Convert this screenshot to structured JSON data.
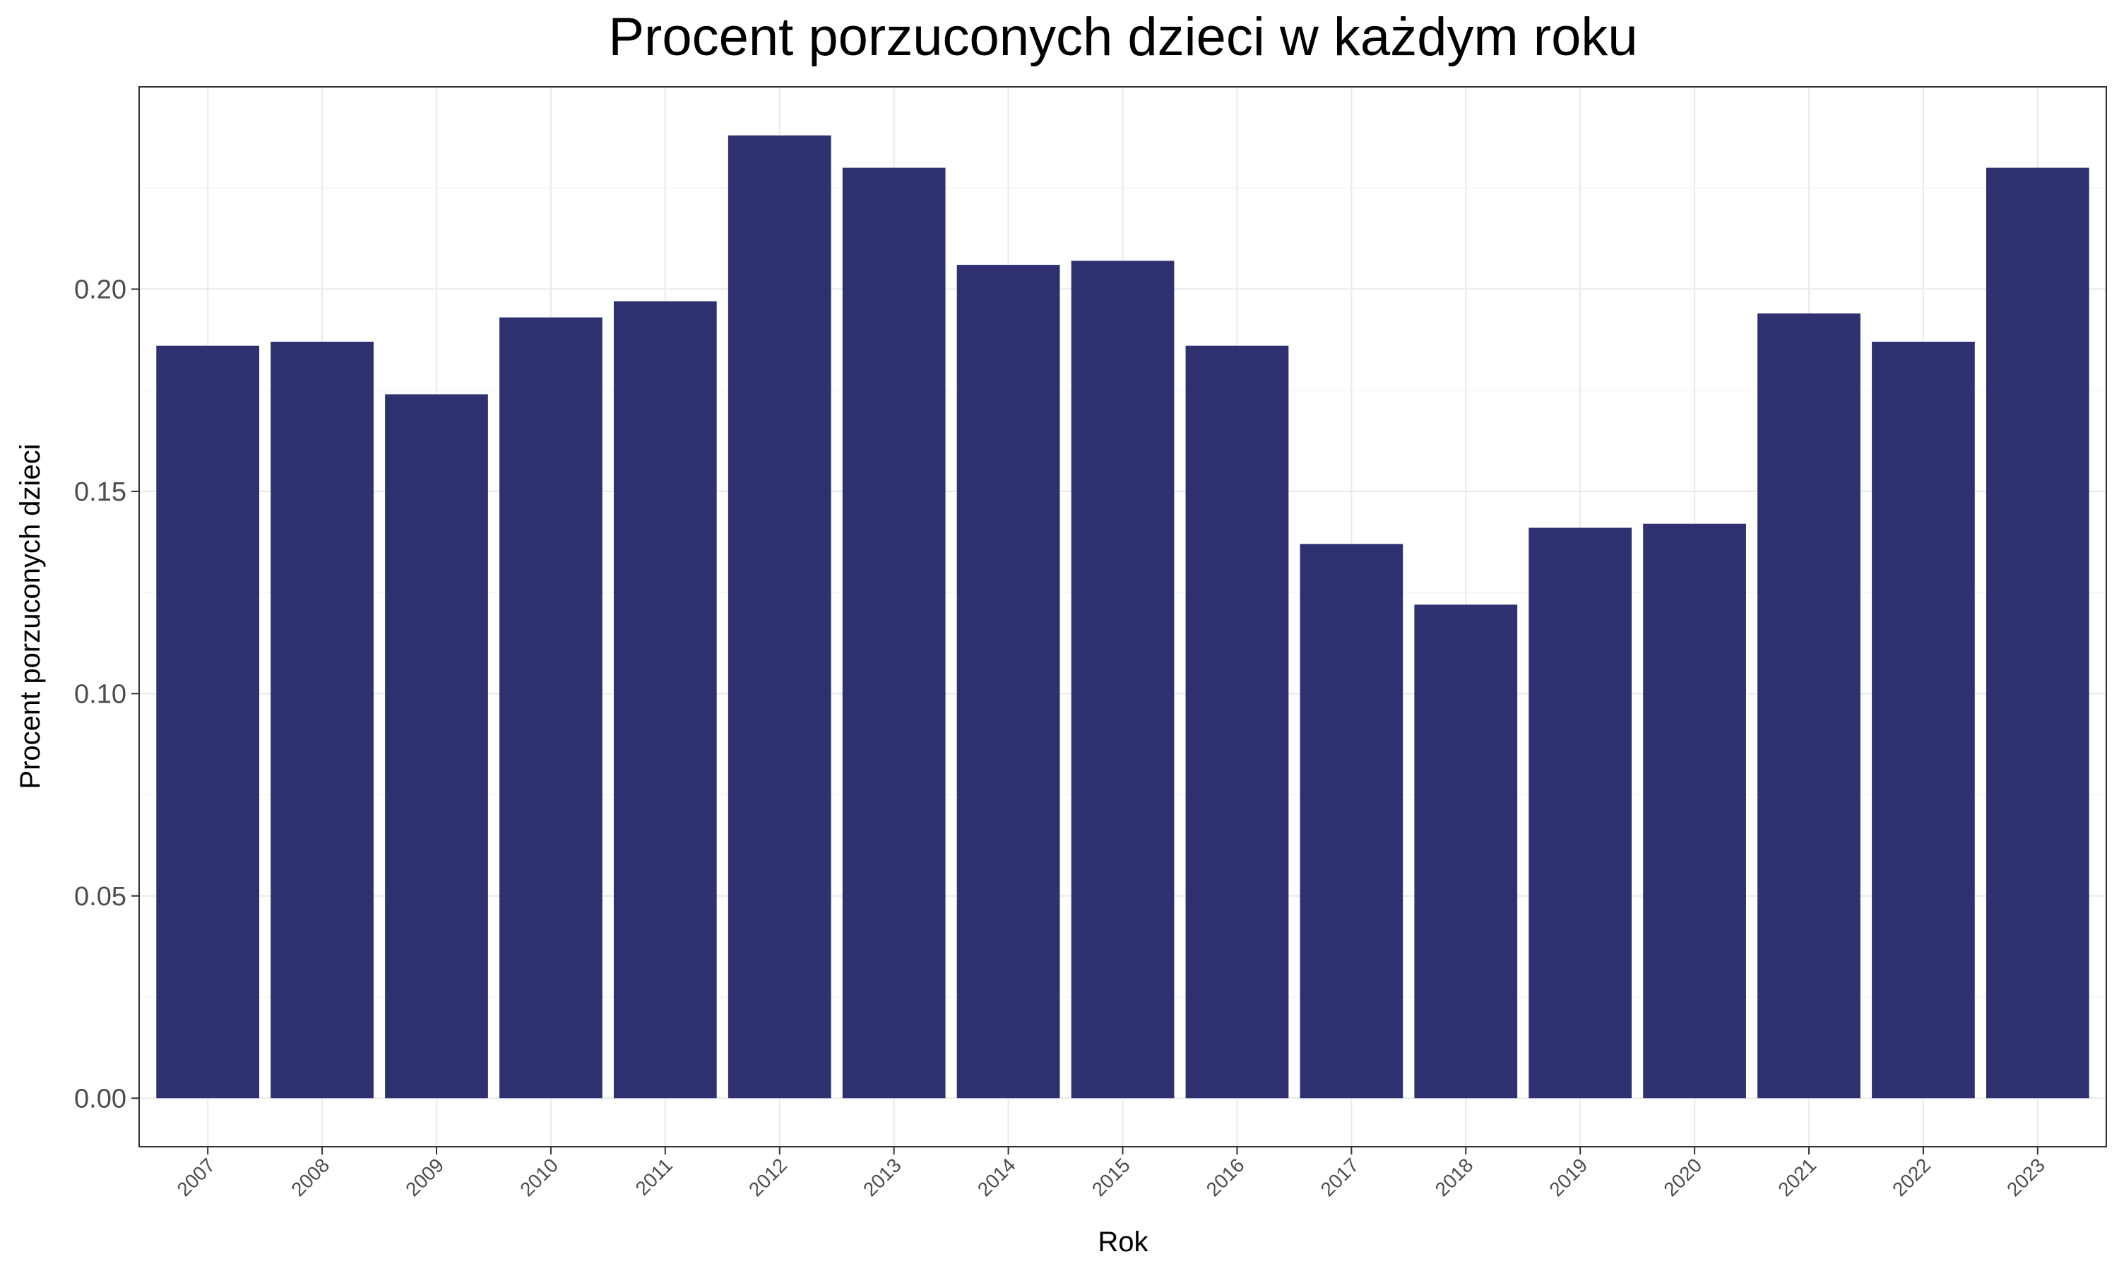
{
  "chart_data": {
    "type": "bar",
    "title": "Procent porzuconych dzieci w każdym roku",
    "xlabel": "Rok",
    "ylabel": "Procent porzuconych dzieci",
    "categories": [
      "2007",
      "2008",
      "2009",
      "2010",
      "2011",
      "2012",
      "2013",
      "2014",
      "2015",
      "2016",
      "2017",
      "2018",
      "2019",
      "2020",
      "2021",
      "2022",
      "2023"
    ],
    "values": [
      0.186,
      0.187,
      0.174,
      0.193,
      0.197,
      0.238,
      0.23,
      0.206,
      0.207,
      0.186,
      0.137,
      0.122,
      0.141,
      0.142,
      0.194,
      0.187,
      0.23
    ],
    "yticks": [
      "0.00",
      "0.05",
      "0.10",
      "0.15",
      "0.20"
    ],
    "ylim": [
      -0.012,
      0.25
    ],
    "grid": true,
    "legend": "none",
    "bar_color": "#2f3070"
  }
}
